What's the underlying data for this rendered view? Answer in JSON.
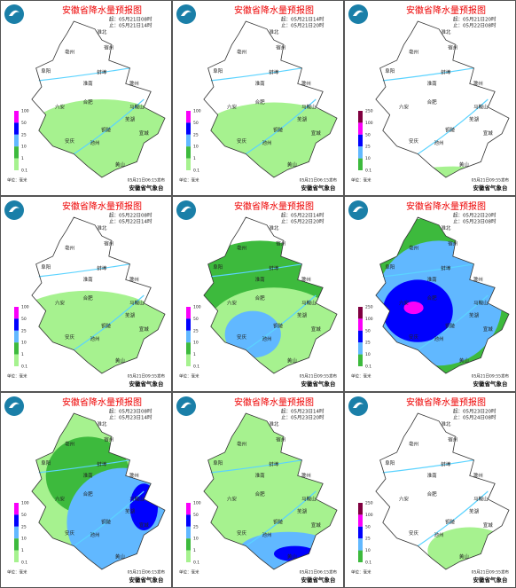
{
  "title": "安徽省降水量预报图",
  "agency": "安徽省气象台",
  "unit": "单位：毫米",
  "cities": [
    "淮北",
    "宿州",
    "亳州",
    "阜阳",
    "蚌埠",
    "淮南",
    "滁州",
    "六安",
    "合肥",
    "马鞍山",
    "芜湖",
    "铜陵",
    "池州",
    "安庆",
    "宣城",
    "黄山"
  ],
  "legend_colors": [
    "#a6f28f",
    "#3dba3d",
    "#61b8ff",
    "#0000fe",
    "#fa00fa",
    "#800040"
  ],
  "panels": [
    {
      "start": "起：05月21日08时",
      "end": "止：05月21日14时",
      "legend": [
        100,
        50,
        25,
        10,
        1,
        0.1
      ],
      "issued": "05月21日06:15发布"
    },
    {
      "start": "起：05月21日14时",
      "end": "止：05月21日20时",
      "legend": [
        100,
        50,
        25,
        10,
        1,
        0.1
      ],
      "issued": "05月21日06:15发布"
    },
    {
      "start": "起：05月21日20时",
      "end": "止：05月22日08时",
      "legend": [
        250,
        100,
        50,
        25,
        10,
        0.1
      ],
      "issued": "05月21日09:55发布"
    },
    {
      "start": "起：05月22日08时",
      "end": "止：05月22日14时",
      "legend": [
        100,
        50,
        25,
        10,
        1,
        0.1
      ],
      "issued": "05月21日09:55发布"
    },
    {
      "start": "起：05月22日14时",
      "end": "止：05月22日20时",
      "legend": [
        100,
        50,
        25,
        10,
        1,
        0.1
      ],
      "issued": "05月21日09:55发布"
    },
    {
      "start": "起：05月22日20时",
      "end": "止：05月23日08时",
      "legend": [
        250,
        100,
        50,
        25,
        10,
        0.1
      ],
      "issued": "05月21日09:55发布"
    },
    {
      "start": "起：05月23日08时",
      "end": "止：05月23日14时",
      "legend": [
        100,
        50,
        25,
        10,
        1,
        0.1
      ],
      "issued": "05月21日06:15发布"
    },
    {
      "start": "起：05月23日14时",
      "end": "止：05月23日20时",
      "legend": [
        100,
        50,
        25,
        10,
        1,
        0.1
      ],
      "issued": "05月21日06:15发布"
    },
    {
      "start": "起：05月23日20时",
      "end": "止：05月24日08时",
      "legend": [
        250,
        100,
        50,
        25,
        10,
        0.1
      ],
      "issued": "05月21日09:55发布"
    }
  ]
}
